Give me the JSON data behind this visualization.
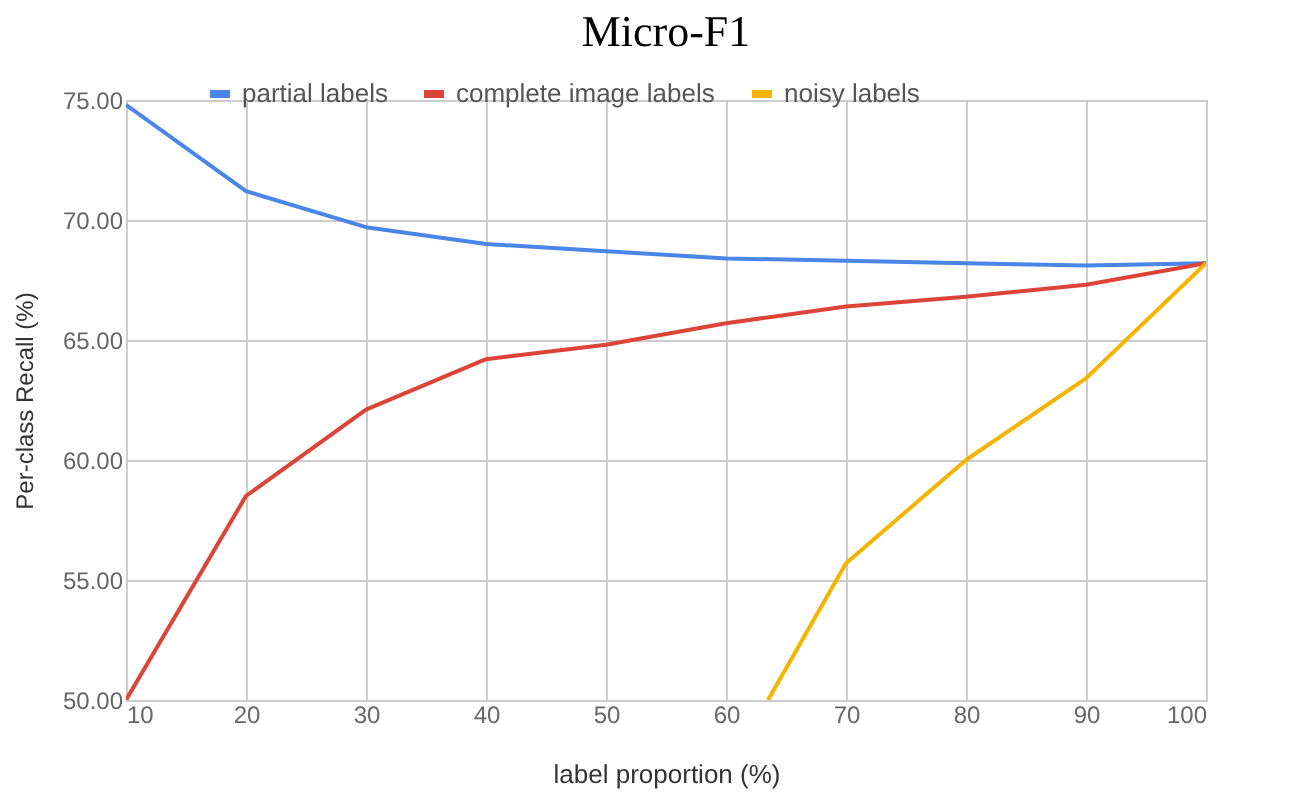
{
  "chart_data": {
    "type": "line",
    "title": "Micro-F1",
    "xlabel": "label proportion (%)",
    "ylabel": "Per-class Recall (%)",
    "x": [
      10,
      20,
      30,
      40,
      50,
      60,
      70,
      80,
      90,
      100
    ],
    "series": [
      {
        "name": "partial labels",
        "color": "#4a86e8",
        "values": [
          74.8,
          71.2,
          69.7,
          69.0,
          68.7,
          68.4,
          68.3,
          68.2,
          68.1,
          68.2
        ]
      },
      {
        "name": "complete image labels",
        "color": "#db4437",
        "values": [
          50.0,
          58.5,
          62.1,
          64.2,
          64.8,
          65.7,
          66.4,
          66.8,
          67.3,
          68.2
        ]
      },
      {
        "name": "noisy labels",
        "color": "#f4b400",
        "x": [
          63.5,
          70,
          80,
          90,
          100
        ],
        "values": [
          50.0,
          55.7,
          60.0,
          63.4,
          68.2
        ]
      }
    ],
    "xlim": [
      10,
      100
    ],
    "xticks": [
      10,
      20,
      30,
      40,
      50,
      60,
      70,
      80,
      90,
      100
    ],
    "ylim": [
      50,
      75
    ],
    "yticks": [
      {
        "value": 50,
        "label": "50.00"
      },
      {
        "value": 55,
        "label": "55.00"
      },
      {
        "value": 60,
        "label": "60.00"
      },
      {
        "value": 65,
        "label": "65.00"
      },
      {
        "value": 70,
        "label": "70.00"
      },
      {
        "value": 75,
        "label": "75.00"
      }
    ],
    "grid": true,
    "legend": "top",
    "marker": "none",
    "line_style": "solid"
  }
}
